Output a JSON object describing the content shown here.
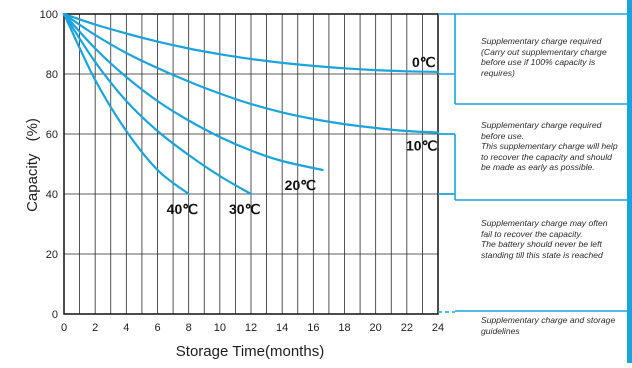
{
  "chart_data": {
    "type": "line",
    "xlabel": "Storage Time(months)",
    "ylabel": "Capacity",
    "ylabel_unit": "(%)",
    "xlim": [
      0,
      24
    ],
    "ylim": [
      0,
      100
    ],
    "x_ticks": [
      0,
      2,
      4,
      6,
      8,
      10,
      12,
      14,
      16,
      18,
      20,
      22,
      24
    ],
    "y_ticks": [
      0,
      20,
      40,
      60,
      80,
      100
    ],
    "x_tick_labels": [
      "0",
      "2",
      "4",
      "6",
      "8",
      "10",
      "12",
      "14",
      "16",
      "18",
      "20",
      "22",
      "24"
    ],
    "y_tick_labels": [
      "0",
      "20",
      "40",
      "60",
      "80",
      "100"
    ],
    "grid": true,
    "line_color": "#1aa3dc",
    "series": [
      {
        "name": "0℃",
        "x": [
          0,
          2,
          4,
          6,
          8,
          10,
          12,
          14,
          16,
          18,
          20,
          22,
          24
        ],
        "y": [
          100,
          96.5,
          93.5,
          90.8,
          88.5,
          86.6,
          85.0,
          83.7,
          82.7,
          81.9,
          81.3,
          80.9,
          80.7
        ]
      },
      {
        "name": "10℃",
        "x": [
          0,
          2,
          4,
          6,
          8,
          10,
          12,
          14,
          16,
          18,
          20,
          22,
          24
        ],
        "y": [
          100,
          93,
          87,
          82,
          77.5,
          73.5,
          70,
          67.2,
          65,
          63.3,
          62,
          61,
          60.5
        ]
      },
      {
        "name": "20℃",
        "x": [
          0,
          2,
          4,
          6,
          8,
          10,
          12,
          14,
          16.6
        ],
        "y": [
          100,
          88.5,
          79,
          71,
          64.5,
          59,
          54.5,
          51,
          48
        ]
      },
      {
        "name": "30℃",
        "x": [
          0,
          2,
          4,
          6,
          8,
          10,
          12
        ],
        "y": [
          100,
          84,
          71,
          61,
          53,
          46,
          40
        ]
      },
      {
        "name": "40℃",
        "x": [
          0,
          2,
          4,
          6,
          8
        ],
        "y": [
          100,
          78,
          61,
          48,
          40
        ]
      }
    ]
  },
  "notes": [
    {
      "text": "Supplementary charge required\n(Carry out supplementary charge\nbefore use if 100% capacity is\nrequires)"
    },
    {
      "text": "Supplementary charge required\nbefore use.\nThis supplementary charge will help\nto recover the capacity and should\nbe made  as early as possible."
    },
    {
      "text": "Supplementary charge may often\nfail to recover the capacity.\nThe battery should never be left\nstanding till this state is reached"
    },
    {
      "text": "Supplementary charge and storage\nguidelines"
    }
  ]
}
